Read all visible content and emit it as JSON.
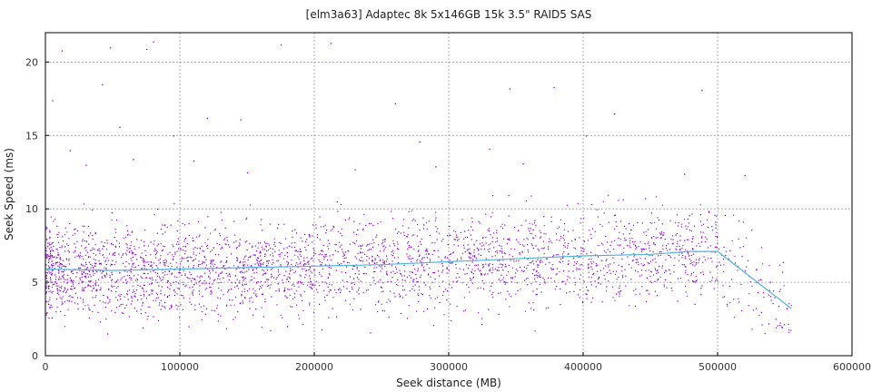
{
  "chart_data": {
    "type": "scatter",
    "title": "[elm3a63] Adaptec 8k 5x146GB 15k 3.5\" RAID5 SAS",
    "xlabel": "Seek distance (MB)",
    "ylabel": "Seek Speed (ms)",
    "xlim": [
      0,
      600000
    ],
    "ylim": [
      0,
      22
    ],
    "x_ticks": [
      0,
      100000,
      200000,
      300000,
      400000,
      500000,
      600000
    ],
    "y_ticks": [
      0,
      5,
      10,
      15,
      20
    ],
    "grid": true,
    "colors": {
      "points": "#8a00d4",
      "trend": "#4fb3e0",
      "grid": "#999999",
      "frame": "#000000"
    },
    "scatter_cloud": {
      "x_range": [
        0,
        555000
      ],
      "y_range": [
        1.5,
        11.0
      ],
      "center_trend_follows": "trend_line",
      "approx_point_count": 18000
    },
    "outliers": [
      [
        48000,
        21.0
      ],
      [
        55000,
        15.6
      ],
      [
        75000,
        20.9
      ],
      [
        80000,
        21.4
      ],
      [
        95000,
        15.0
      ],
      [
        42000,
        18.5
      ],
      [
        12000,
        20.8
      ],
      [
        5000,
        17.4
      ],
      [
        120000,
        16.2
      ],
      [
        145000,
        16.1
      ],
      [
        175000,
        21.2
      ],
      [
        212000,
        21.3
      ],
      [
        260000,
        17.2
      ],
      [
        278000,
        14.6
      ],
      [
        330000,
        14.1
      ],
      [
        345000,
        18.2
      ],
      [
        378000,
        18.3
      ],
      [
        423000,
        16.5
      ],
      [
        488000,
        18.1
      ],
      [
        402000,
        15.0
      ],
      [
        30000,
        13.0
      ],
      [
        65000,
        13.4
      ],
      [
        150000,
        12.5
      ],
      [
        230000,
        12.7
      ],
      [
        290000,
        12.9
      ],
      [
        520000,
        12.3
      ],
      [
        18000,
        14.0
      ],
      [
        110000,
        13.3
      ],
      [
        355000,
        13.1
      ],
      [
        475000,
        12.4
      ]
    ],
    "trend_line": {
      "x": [
        0,
        50000,
        100000,
        150000,
        200000,
        250000,
        300000,
        350000,
        400000,
        450000,
        480000,
        500000,
        555000
      ],
      "y": [
        5.9,
        5.8,
        5.9,
        6.0,
        6.1,
        6.2,
        6.4,
        6.6,
        6.8,
        6.9,
        7.1,
        7.1,
        3.2
      ]
    }
  }
}
